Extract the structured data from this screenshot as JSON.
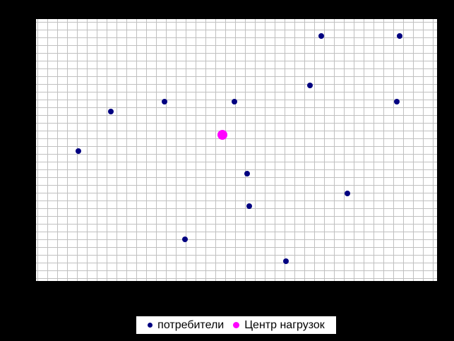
{
  "window": {
    "background_color": "#000000"
  },
  "legend": {
    "position": "bottom-center",
    "background_color": "#FFFFFF",
    "border_color": "#000000",
    "items": [
      {
        "id": "consumers",
        "label": "потребители",
        "color": "#000080",
        "marker": "circle"
      },
      {
        "id": "load-center",
        "label": "Центр нагрузок",
        "color": "#FF00FF",
        "marker": "circle"
      }
    ]
  },
  "chart_data": {
    "type": "scatter",
    "title": "",
    "xlabel": "",
    "ylabel": "",
    "axis_tick_labels_visible": false,
    "plot_background": "#FFFFFF",
    "grid": {
      "visible": true,
      "color": "#C0C0C0",
      "x_step": 1,
      "y_step": 1
    },
    "legend_position": "bottom-center",
    "xlim": [
      0,
      40.6
    ],
    "ylim": [
      0,
      33.7
    ],
    "units_note": "no axis labels shown; point coordinates estimated in grid-cell units",
    "series": [
      {
        "id": "consumers",
        "name": "потребители",
        "color": "#000080",
        "marker": "circle",
        "marker_size_px": 8,
        "points": [
          {
            "x": 28.9,
            "y": 31.5
          },
          {
            "x": 36.8,
            "y": 31.5
          },
          {
            "x": 27.7,
            "y": 25.2
          },
          {
            "x": 13.0,
            "y": 23.1
          },
          {
            "x": 20.1,
            "y": 23.1
          },
          {
            "x": 36.5,
            "y": 23.1
          },
          {
            "x": 7.6,
            "y": 21.8
          },
          {
            "x": 4.3,
            "y": 16.7
          },
          {
            "x": 21.4,
            "y": 13.8
          },
          {
            "x": 31.5,
            "y": 11.3
          },
          {
            "x": 21.6,
            "y": 9.6
          },
          {
            "x": 15.1,
            "y": 5.4
          },
          {
            "x": 25.3,
            "y": 2.5
          }
        ]
      },
      {
        "id": "load-center",
        "name": "Центр нагрузок",
        "color": "#FF00FF",
        "marker": "circle",
        "marker_size_px": 14,
        "points": [
          {
            "x": 18.9,
            "y": 18.8
          }
        ]
      }
    ]
  }
}
